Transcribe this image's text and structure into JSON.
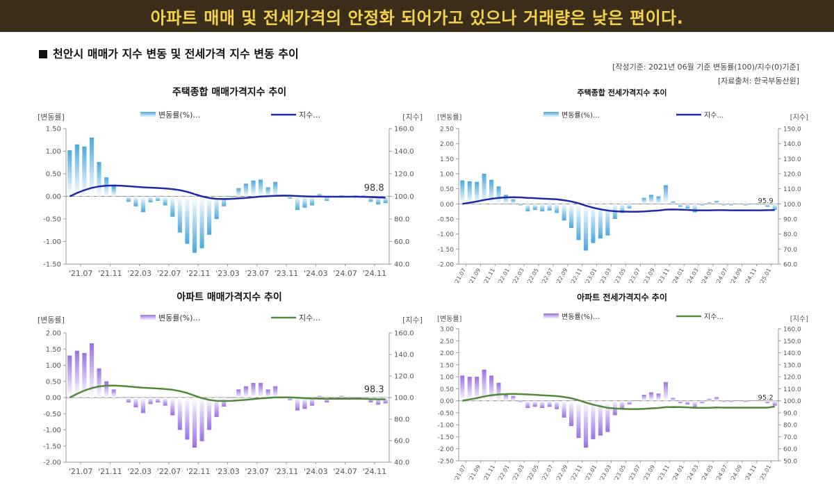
{
  "banner": {
    "text": "아파트 매매 및 전세가격의 안정화 되어가고 있으나 거래량은 낮은 편이다."
  },
  "section": {
    "title": "천안시 매매가 지수 변동 및 전세가격 지수 변동 추이"
  },
  "source": {
    "basis": "[작성기준: 2021년 06월 기준 변동률(100)/지수(0)기준]",
    "origin": "[자료출처: 한국부동산원]"
  },
  "colors": {
    "banner_bg": "#3a2e1a",
    "banner_text": "#f5d24b",
    "bar_blue": "#4aa8e0",
    "bar_purple": "#9a6fe6",
    "line_blue": "#1f2aa8",
    "line_green": "#4e8a3a"
  },
  "chart_data": [
    {
      "type": "bar+line",
      "title": "주택종합 매매가격지수 추이",
      "left_axis_label": "[변동률]",
      "right_axis_label": "[지수]",
      "legend": [
        "변동률(%)…",
        "지수…"
      ],
      "left_ylim": [
        -1.5,
        1.5
      ],
      "left_ticks": [
        "1.50",
        "1.00",
        "0.50",
        "0.00",
        "-0.50",
        "-1.00",
        "-1.50"
      ],
      "right_ylim": [
        40,
        160
      ],
      "right_ticks": [
        "160.0",
        "140.0",
        "120.0",
        "100.0",
        "80.0",
        "60.0",
        "40.0"
      ],
      "xlabels": [
        "'21.07",
        "'21.11",
        "'22.03",
        "'22.07",
        "'22.11",
        "'23.03",
        "'23.07",
        "'23.11",
        "'24.03",
        "'24.07",
        "'24.11"
      ],
      "change_pct": [
        1.02,
        1.15,
        1.1,
        1.3,
        0.76,
        0.42,
        0.22,
        0.0,
        -0.12,
        -0.22,
        -0.35,
        -0.13,
        -0.1,
        -0.2,
        -0.45,
        -0.8,
        -1.05,
        -1.25,
        -1.15,
        -0.85,
        -0.5,
        -0.22,
        -0.02,
        0.18,
        0.28,
        0.35,
        0.37,
        0.2,
        0.32,
        0.0,
        -0.05,
        -0.3,
        -0.25,
        -0.2,
        0.05,
        -0.1,
        0.0,
        0.02,
        0.0,
        0.02,
        0.02,
        -0.12,
        -0.18,
        -0.15
      ],
      "index": [
        100.0,
        103.0,
        105.5,
        107.5,
        108.8,
        109.5,
        109.6,
        109.4,
        109.0,
        108.5,
        108.0,
        107.7,
        107.4,
        107.0,
        106.4,
        105.5,
        104.0,
        102.0,
        100.0,
        98.5,
        97.8,
        97.6,
        97.8,
        98.2,
        98.6,
        99.2,
        99.8,
        100.2,
        100.5,
        100.7,
        100.6,
        100.3,
        100.0,
        99.8,
        99.8,
        99.7,
        99.7,
        99.7,
        99.7,
        99.7,
        99.6,
        99.4,
        99.1,
        98.8
      ],
      "last_label": "98.8"
    },
    {
      "type": "bar+line",
      "title": "주택종합 전세가격지수 추이",
      "left_axis_label": "[변동률]",
      "right_axis_label": "[지수]",
      "legend": [
        "변동률(%)…",
        "지수…"
      ],
      "left_ylim": [
        -2.0,
        2.5
      ],
      "left_ticks": [
        "2.50",
        "2.00",
        "1.50",
        "1.00",
        "0.50",
        "0.00",
        "-0.50",
        "-1.00",
        "-1.50",
        "-2.00"
      ],
      "right_ylim": [
        60,
        150
      ],
      "right_ticks": [
        "150.0",
        "140.0",
        "130.0",
        "120.0",
        "110.0",
        "100.0",
        "90.0",
        "80.0",
        "70.0",
        "60.0"
      ],
      "xlabels": [
        "'21.07",
        "'21.09",
        "'21.11",
        "'22.01",
        "'22.03",
        "'22.05",
        "'22.07",
        "'22.09",
        "'22.11",
        "'23.01",
        "'23.03",
        "'23.05",
        "'23.07",
        "'23.09",
        "'23.11",
        "'24.01",
        "'24.03",
        "'24.05",
        "'24.07",
        "'24.09",
        "'24.11",
        "'25.01"
      ],
      "change_pct": [
        0.78,
        0.75,
        0.73,
        1.0,
        0.8,
        0.58,
        0.3,
        0.15,
        -0.05,
        -0.25,
        -0.2,
        -0.25,
        -0.22,
        -0.3,
        -0.55,
        -0.8,
        -1.2,
        -1.55,
        -1.3,
        -1.15,
        -1.05,
        -0.5,
        -0.3,
        -0.15,
        0.0,
        0.2,
        0.3,
        0.25,
        0.62,
        0.08,
        -0.1,
        -0.15,
        -0.28,
        -0.05,
        0.05,
        0.1,
        -0.05,
        -0.05,
        0.0,
        -0.05,
        0.0,
        0.0,
        -0.1,
        -0.2
      ],
      "index": [
        100.0,
        100.8,
        101.6,
        102.6,
        103.4,
        104.0,
        104.3,
        104.4,
        104.3,
        104.0,
        103.8,
        103.5,
        103.3,
        103.0,
        102.4,
        101.6,
        100.4,
        98.8,
        97.5,
        96.4,
        95.6,
        95.1,
        94.9,
        94.8,
        94.8,
        95.0,
        95.3,
        95.6,
        96.2,
        96.3,
        96.2,
        96.0,
        95.7,
        95.7,
        95.7,
        95.8,
        95.8,
        95.7,
        95.7,
        95.7,
        95.7,
        95.7,
        95.8,
        95.9
      ],
      "last_label": "95.9"
    },
    {
      "type": "bar+line",
      "title": "아파트 매매가격지수 추이",
      "left_axis_label": "[변동률]",
      "right_axis_label": "[지수]",
      "legend": [
        "변동률(%)…",
        "지수…"
      ],
      "left_ylim": [
        -2.0,
        2.0
      ],
      "left_ticks": [
        "2.00",
        "1.50",
        "1.00",
        "0.50",
        "0.00",
        "-0.50",
        "-1.00",
        "-1.50",
        "-2.00"
      ],
      "right_ylim": [
        40,
        160
      ],
      "right_ticks": [
        "160.0",
        "140.0",
        "120.0",
        "100.0",
        "80.0",
        "60.0",
        "40.0"
      ],
      "xlabels": [
        "'21.07",
        "'21.11",
        "'22.03",
        "'22.07",
        "'22.11",
        "'23.03",
        "'23.07",
        "'23.11",
        "'24.03",
        "'24.07",
        "'24.11"
      ],
      "change_pct": [
        1.3,
        1.45,
        1.38,
        1.68,
        0.9,
        0.5,
        0.25,
        0.0,
        -0.15,
        -0.3,
        -0.48,
        -0.2,
        -0.15,
        -0.25,
        -0.55,
        -1.0,
        -1.3,
        -1.55,
        -1.35,
        -1.0,
        -0.6,
        -0.28,
        -0.02,
        0.25,
        0.35,
        0.45,
        0.45,
        0.25,
        0.35,
        0.0,
        -0.08,
        -0.4,
        -0.35,
        -0.25,
        0.05,
        -0.15,
        0.0,
        0.05,
        0.0,
        0.02,
        0.0,
        -0.15,
        -0.22,
        -0.18
      ],
      "index": [
        100.0,
        103.5,
        106.5,
        108.8,
        110.3,
        111.0,
        111.1,
        110.8,
        110.3,
        109.7,
        109.1,
        108.8,
        108.4,
        107.9,
        107.2,
        106.0,
        104.2,
        101.8,
        99.5,
        97.8,
        97.0,
        96.8,
        96.9,
        97.4,
        97.9,
        98.6,
        99.3,
        99.7,
        100.1,
        100.2,
        100.1,
        99.8,
        99.4,
        99.1,
        99.0,
        98.9,
        98.9,
        98.9,
        98.9,
        98.9,
        98.8,
        98.6,
        98.4,
        98.3
      ],
      "last_label": "98.3"
    },
    {
      "type": "bar+line",
      "title": "아파트 전세가격지수 추이",
      "left_axis_label": "[변동률]",
      "right_axis_label": "[지수]",
      "legend": [
        "변동률(%)…",
        "지수…"
      ],
      "left_ylim": [
        -2.5,
        3.0
      ],
      "left_ticks": [
        "3.00",
        "2.50",
        "2.00",
        "1.50",
        "1.00",
        "0.50",
        "0.00",
        "-0.50",
        "-1.00",
        "-1.50",
        "-2.00",
        "-2.50"
      ],
      "right_ylim": [
        50,
        160
      ],
      "right_ticks": [
        "160.0",
        "150.0",
        "140.0",
        "130.0",
        "120.0",
        "110.0",
        "100.0",
        "90.0",
        "80.0",
        "70.0",
        "60.0",
        "50.0"
      ],
      "xlabels": [
        "'21.07",
        "'21.09",
        "'21.11",
        "'22.01",
        "'22.03",
        "'22.05",
        "'22.07",
        "'22.09",
        "'22.11",
        "'23.01",
        "'23.03",
        "'23.05",
        "'23.07",
        "'23.09",
        "'23.11",
        "'24.01",
        "'24.03",
        "'24.05",
        "'24.07",
        "'24.09",
        "'24.11",
        "'25.01"
      ],
      "change_pct": [
        1.05,
        1.0,
        1.0,
        1.3,
        1.05,
        0.75,
        0.3,
        0.2,
        -0.05,
        -0.3,
        -0.25,
        -0.3,
        -0.25,
        -0.35,
        -0.7,
        -1.05,
        -1.55,
        -1.95,
        -1.6,
        -1.45,
        -1.3,
        -0.6,
        -0.35,
        -0.15,
        0.0,
        0.25,
        0.35,
        0.3,
        0.78,
        0.12,
        -0.1,
        -0.15,
        -0.3,
        -0.1,
        0.08,
        0.15,
        -0.05,
        -0.05,
        0.0,
        -0.05,
        0.0,
        0.0,
        -0.1,
        -0.2
      ],
      "index": [
        100.0,
        101.1,
        102.2,
        103.6,
        104.6,
        105.3,
        105.6,
        105.7,
        105.6,
        105.3,
        105.0,
        104.6,
        104.3,
        103.9,
        103.2,
        102.1,
        100.5,
        98.5,
        96.8,
        95.4,
        94.2,
        93.6,
        93.3,
        93.1,
        93.1,
        93.3,
        93.7,
        94.0,
        94.7,
        94.8,
        94.7,
        94.5,
        94.2,
        94.1,
        94.2,
        94.4,
        94.3,
        94.3,
        94.3,
        94.3,
        94.3,
        94.3,
        94.3,
        95.2
      ],
      "last_label": "95.2"
    }
  ]
}
